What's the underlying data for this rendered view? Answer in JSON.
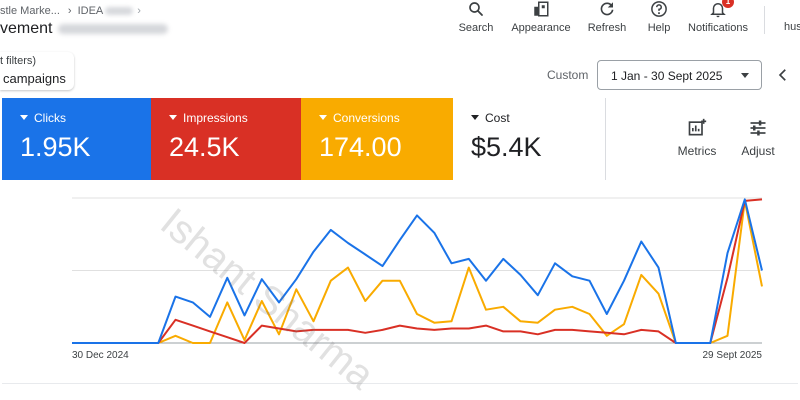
{
  "header": {
    "breadcrumb_account": "stle Marke...",
    "breadcrumb_campaign": "IDEA",
    "page_title": "vement"
  },
  "toolbar": {
    "search_label": "Search",
    "appearance_label": "Appearance",
    "refresh_label": "Refresh",
    "help_label": "Help",
    "notifications_label": "Notifications",
    "notifications_count": "1",
    "account_label": "hus"
  },
  "filters": {
    "filter_text": "t filters)",
    "scope_label": "campaigns"
  },
  "date_range": {
    "custom_label": "Custom",
    "selected": "1 Jan - 30 Sept 2025"
  },
  "metrics": {
    "clicks": {
      "label": "Clicks",
      "value": "1.95K",
      "color": "#1a73e8"
    },
    "impressions": {
      "label": "Impressions",
      "value": "24.5K",
      "color": "#d93025"
    },
    "conversions": {
      "label": "Conversions",
      "value": "174.00",
      "color": "#f9ab00"
    },
    "cost": {
      "label": "Cost",
      "value": "$5.4K",
      "color": "#ffffff"
    }
  },
  "actions": {
    "metrics_label": "Metrics",
    "adjust_label": "Adjust"
  },
  "watermark": "Ishant Sharma",
  "chart_data": {
    "type": "line",
    "x_start_label": "30 Dec 2024",
    "x_end_label": "29 Sept 2025",
    "grid": true,
    "y_scale": "relative",
    "series": [
      {
        "name": "Clicks",
        "color": "#1a73e8",
        "values": [
          0,
          0,
          0,
          0,
          0,
          0,
          0.32,
          0.28,
          0.18,
          0.45,
          0.19,
          0.44,
          0.28,
          0.44,
          0.63,
          0.78,
          0.69,
          0.61,
          0.53,
          0.71,
          0.88,
          0.76,
          0.55,
          0.58,
          0.43,
          0.58,
          0.47,
          0.33,
          0.55,
          0.46,
          0.43,
          0.2,
          0.43,
          0.7,
          0.52,
          0.0,
          0.0,
          0.0,
          0.62,
          0.99,
          0.5
        ]
      },
      {
        "name": "Impressions",
        "color": "#d93025",
        "values": [
          0,
          0,
          0,
          0,
          0,
          0,
          0.16,
          0.12,
          0.08,
          0.04,
          0.0,
          0.12,
          0.1,
          0.08,
          0.09,
          0.09,
          0.09,
          0.07,
          0.09,
          0.12,
          0.1,
          0.09,
          0.1,
          0.1,
          0.12,
          0.08,
          0.08,
          0.06,
          0.09,
          0.09,
          0.08,
          0.07,
          0.06,
          0.09,
          0.08,
          0.0,
          0.0,
          0.0,
          0.45,
          0.98,
          0.99
        ]
      },
      {
        "name": "Conversions",
        "color": "#f9ab00",
        "values": [
          0,
          0,
          0,
          0,
          0,
          0,
          0.05,
          0.0,
          0.0,
          0.28,
          0.02,
          0.29,
          0.06,
          0.37,
          0.15,
          0.43,
          0.52,
          0.29,
          0.43,
          0.43,
          0.2,
          0.14,
          0.15,
          0.52,
          0.23,
          0.25,
          0.15,
          0.14,
          0.23,
          0.25,
          0.2,
          0.05,
          0.13,
          0.47,
          0.34,
          0.0,
          0.0,
          0.0,
          0.05,
          0.98,
          0.39
        ]
      }
    ]
  }
}
